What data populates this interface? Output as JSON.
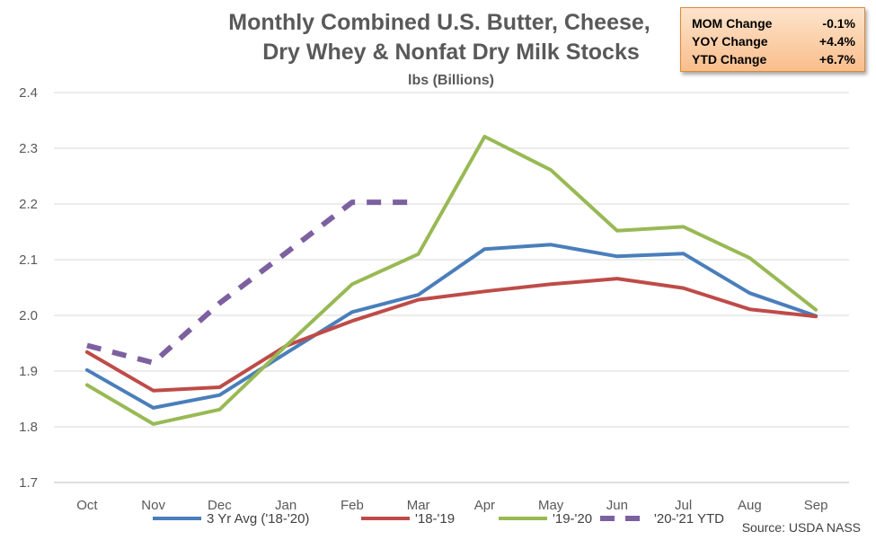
{
  "chart_data": {
    "type": "line",
    "title": [
      "Monthly Combined U.S. Butter, Cheese,",
      "Dry Whey & Nonfat Dry Milk Stocks"
    ],
    "subtitle": "lbs (Billions)",
    "categories": [
      "Oct",
      "Nov",
      "Dec",
      "Jan",
      "Feb",
      "Mar",
      "Apr",
      "May",
      "Jun",
      "Jul",
      "Aug",
      "Sep"
    ],
    "ylim": [
      1.7,
      2.4
    ],
    "yticks": [
      "1.7",
      "1.8",
      "1.9",
      "2.0",
      "2.1",
      "2.2",
      "2.3",
      "2.4"
    ],
    "grid": true,
    "legend_position": "bottom",
    "series": [
      {
        "name": "3 Yr Avg ('18-'20)",
        "color": "#4a7ebb",
        "dashed": false,
        "values": [
          1.902,
          1.834,
          1.857,
          1.932,
          2.006,
          2.037,
          2.119,
          2.127,
          2.106,
          2.111,
          2.04,
          1.999
        ]
      },
      {
        "name": "'18-'19",
        "color": "#be4b48",
        "dashed": false,
        "values": [
          1.934,
          1.865,
          1.871,
          1.945,
          1.99,
          2.028,
          2.043,
          2.056,
          2.066,
          2.049,
          2.011,
          1.998
        ]
      },
      {
        "name": "'19-'20",
        "color": "#98b954",
        "dashed": false,
        "values": [
          1.875,
          1.805,
          1.831,
          1.945,
          2.056,
          2.11,
          2.321,
          2.261,
          2.152,
          2.159,
          2.103,
          2.01
        ]
      },
      {
        "name": "'20-'21 YTD",
        "color": "#7d60a0",
        "dashed": true,
        "values": [
          1.946,
          1.915,
          2.022,
          2.112,
          2.203,
          2.203,
          null,
          null,
          null,
          null,
          null,
          null
        ]
      }
    ],
    "source": "Source: USDA NASS"
  },
  "stats": [
    {
      "label": "MOM Change",
      "value": "-0.1%"
    },
    {
      "label": "YOY Change",
      "value": "+4.4%"
    },
    {
      "label": "YTD Change",
      "value": "+6.7%"
    }
  ]
}
